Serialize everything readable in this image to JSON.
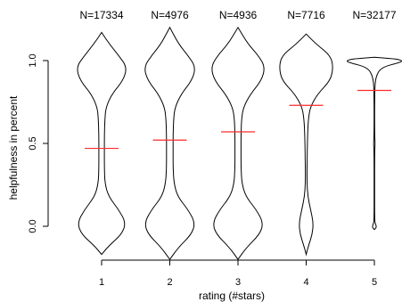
{
  "chart_data": {
    "type": "violin",
    "title": "",
    "xlabel": "rating (#stars)",
    "ylabel": "helpfulness in percent",
    "ylim": [
      -0.2,
      1.2
    ],
    "yticks": [
      "0.0",
      "0.5",
      "1.0"
    ],
    "categories": [
      "1",
      "2",
      "3",
      "4",
      "5"
    ],
    "counts": [
      "N=17334",
      "N=4976",
      "N=4936",
      "N=7716",
      "N=32177"
    ],
    "means": [
      0.47,
      0.52,
      0.57,
      0.73,
      0.82
    ],
    "mean_line_color": "#ff2a2a",
    "outline_color": "#000000",
    "density_profiles": [
      [
        [
          -0.17,
          0
        ],
        [
          -0.12,
          0.25
        ],
        [
          -0.05,
          0.72
        ],
        [
          0.02,
          0.88
        ],
        [
          0.1,
          0.62
        ],
        [
          0.18,
          0.25
        ],
        [
          0.26,
          0.12
        ],
        [
          0.35,
          0.1
        ],
        [
          0.45,
          0.1
        ],
        [
          0.55,
          0.1
        ],
        [
          0.65,
          0.12
        ],
        [
          0.72,
          0.16
        ],
        [
          0.8,
          0.38
        ],
        [
          0.88,
          0.78
        ],
        [
          0.96,
          0.92
        ],
        [
          1.03,
          0.62
        ],
        [
          1.1,
          0.28
        ],
        [
          1.17,
          0
        ]
      ],
      [
        [
          -0.2,
          0
        ],
        [
          -0.13,
          0.3
        ],
        [
          -0.05,
          0.78
        ],
        [
          0.02,
          0.92
        ],
        [
          0.1,
          0.66
        ],
        [
          0.18,
          0.28
        ],
        [
          0.26,
          0.15
        ],
        [
          0.35,
          0.12
        ],
        [
          0.45,
          0.12
        ],
        [
          0.55,
          0.12
        ],
        [
          0.65,
          0.14
        ],
        [
          0.72,
          0.19
        ],
        [
          0.8,
          0.42
        ],
        [
          0.88,
          0.8
        ],
        [
          0.96,
          0.94
        ],
        [
          1.03,
          0.66
        ],
        [
          1.1,
          0.32
        ],
        [
          1.2,
          0
        ]
      ],
      [
        [
          -0.2,
          0
        ],
        [
          -0.13,
          0.3
        ],
        [
          -0.05,
          0.78
        ],
        [
          0.02,
          0.92
        ],
        [
          0.1,
          0.66
        ],
        [
          0.18,
          0.28
        ],
        [
          0.26,
          0.14
        ],
        [
          0.35,
          0.11
        ],
        [
          0.45,
          0.11
        ],
        [
          0.55,
          0.11
        ],
        [
          0.65,
          0.13
        ],
        [
          0.72,
          0.2
        ],
        [
          0.8,
          0.46
        ],
        [
          0.88,
          0.85
        ],
        [
          0.96,
          0.98
        ],
        [
          1.03,
          0.74
        ],
        [
          1.1,
          0.36
        ],
        [
          1.2,
          0
        ]
      ],
      [
        [
          -0.17,
          0
        ],
        [
          -0.12,
          0.08
        ],
        [
          -0.05,
          0.22
        ],
        [
          0.02,
          0.26
        ],
        [
          0.1,
          0.16
        ],
        [
          0.18,
          0.06
        ],
        [
          0.26,
          0.03
        ],
        [
          0.35,
          0.03
        ],
        [
          0.45,
          0.04
        ],
        [
          0.55,
          0.05
        ],
        [
          0.65,
          0.08
        ],
        [
          0.72,
          0.15
        ],
        [
          0.8,
          0.42
        ],
        [
          0.88,
          0.88
        ],
        [
          0.96,
          0.98
        ],
        [
          1.03,
          0.88
        ],
        [
          1.1,
          0.36
        ],
        [
          1.16,
          0
        ]
      ],
      [
        [
          -0.02,
          0
        ],
        [
          -0.01,
          0.06
        ],
        [
          0.0,
          0.07
        ],
        [
          0.01,
          0.05
        ],
        [
          0.03,
          0.01
        ],
        [
          0.2,
          0.01
        ],
        [
          0.45,
          0.01
        ],
        [
          0.5,
          0.03
        ],
        [
          0.55,
          0.01
        ],
        [
          0.8,
          0.01
        ],
        [
          0.9,
          0.04
        ],
        [
          0.96,
          0.25
        ],
        [
          0.99,
          0.96
        ],
        [
          1.0,
          1.0
        ],
        [
          1.01,
          0.8
        ],
        [
          1.02,
          0
        ]
      ]
    ]
  }
}
